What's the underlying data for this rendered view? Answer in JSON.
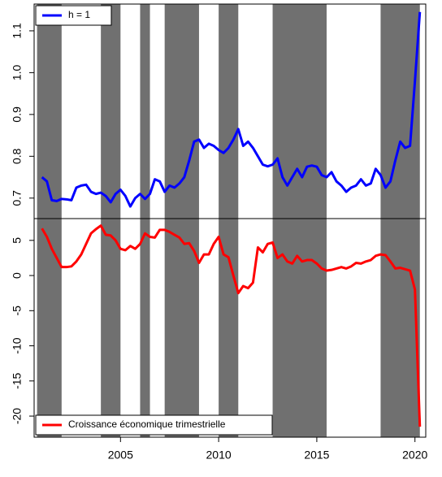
{
  "chart_data": [
    {
      "type": "line",
      "legend": "topleft",
      "x": [
        2001.0,
        2001.25,
        2001.5,
        2001.75,
        2002.0,
        2002.25,
        2002.5,
        2002.75,
        2003.0,
        2003.25,
        2003.5,
        2003.75,
        2004.0,
        2004.25,
        2004.5,
        2004.75,
        2005.0,
        2005.25,
        2005.5,
        2005.75,
        2006.0,
        2006.25,
        2006.5,
        2006.75,
        2007.0,
        2007.25,
        2007.5,
        2007.75,
        2008.0,
        2008.25,
        2008.5,
        2008.75,
        2009.0,
        2009.25,
        2009.5,
        2009.75,
        2010.0,
        2010.25,
        2010.5,
        2010.75,
        2011.0,
        2011.25,
        2011.5,
        2011.75,
        2012.0,
        2012.25,
        2012.5,
        2012.75,
        2013.0,
        2013.25,
        2013.5,
        2013.75,
        2014.0,
        2014.25,
        2014.5,
        2014.75,
        2015.0,
        2015.25,
        2015.5,
        2015.75,
        2016.0,
        2016.25,
        2016.5,
        2016.75,
        2017.0,
        2017.25,
        2017.5,
        2017.75,
        2018.0,
        2018.25,
        2018.5,
        2018.75,
        2019.0,
        2019.25,
        2019.5,
        2019.75,
        2020.0,
        2020.25
      ],
      "series": [
        {
          "name": "h = 1",
          "color": "#0000ff",
          "values": [
            0.75,
            0.74,
            0.695,
            0.693,
            0.698,
            0.697,
            0.695,
            0.725,
            0.73,
            0.732,
            0.715,
            0.71,
            0.713,
            0.705,
            0.69,
            0.71,
            0.72,
            0.705,
            0.68,
            0.7,
            0.71,
            0.698,
            0.71,
            0.745,
            0.74,
            0.715,
            0.73,
            0.725,
            0.735,
            0.75,
            0.79,
            0.835,
            0.84,
            0.82,
            0.83,
            0.825,
            0.815,
            0.808,
            0.82,
            0.84,
            0.865,
            0.825,
            0.835,
            0.82,
            0.8,
            0.78,
            0.776,
            0.78,
            0.795,
            0.75,
            0.73,
            0.75,
            0.77,
            0.75,
            0.775,
            0.778,
            0.775,
            0.755,
            0.75,
            0.762,
            0.74,
            0.73,
            0.715,
            0.725,
            0.73,
            0.745,
            0.73,
            0.735,
            0.77,
            0.755,
            0.725,
            0.74,
            0.79,
            0.835,
            0.82,
            0.825,
            0.98,
            1.145
          ]
        }
      ],
      "xlim": [
        2000.6,
        2020.55
      ],
      "ylim": [
        0.651,
        1.164
      ],
      "yticks": [
        0.7,
        0.8,
        0.9,
        {
          "value": 1,
          "label": "1.0"
        },
        1.1
      ],
      "shading": [
        [
          2000.75,
          2002
        ],
        [
          2004,
          2005
        ],
        [
          2006,
          2006.5
        ],
        [
          2007.25,
          2009
        ],
        [
          2010,
          2011
        ],
        [
          2012.75,
          2015.5
        ],
        [
          2018.25,
          2020.25
        ]
      ],
      "shading_color": "#707070"
    },
    {
      "type": "line",
      "legend": "bottomleft",
      "x": [
        2001.0,
        2001.25,
        2001.5,
        2001.75,
        2002.0,
        2002.25,
        2002.5,
        2002.75,
        2003.0,
        2003.25,
        2003.5,
        2003.75,
        2004.0,
        2004.25,
        2004.5,
        2004.75,
        2005.0,
        2005.25,
        2005.5,
        2005.75,
        2006.0,
        2006.25,
        2006.5,
        2006.75,
        2007.0,
        2007.25,
        2007.5,
        2007.75,
        2008.0,
        2008.25,
        2008.5,
        2008.75,
        2009.0,
        2009.25,
        2009.5,
        2009.75,
        2010.0,
        2010.25,
        2010.5,
        2010.75,
        2011.0,
        2011.25,
        2011.5,
        2011.75,
        2012.0,
        2012.25,
        2012.5,
        2012.75,
        2013.0,
        2013.25,
        2013.5,
        2013.75,
        2014.0,
        2014.25,
        2014.5,
        2014.75,
        2015.0,
        2015.25,
        2015.5,
        2015.75,
        2016.0,
        2016.25,
        2016.5,
        2016.75,
        2017.0,
        2017.25,
        2017.5,
        2017.75,
        2018.0,
        2018.25,
        2018.5,
        2018.75,
        2019.0,
        2019.25,
        2019.5,
        2019.75,
        2020.0,
        2020.25
      ],
      "series": [
        {
          "name": "Croissance économique trimestrielle",
          "color": "#ff0000",
          "values": [
            6.7,
            5.5,
            3.8,
            2.5,
            1.2,
            1.2,
            1.3,
            2.0,
            3.0,
            4.5,
            6.0,
            6.6,
            7.1,
            5.8,
            5.7,
            5.0,
            3.8,
            3.6,
            4.2,
            3.8,
            4.5,
            6.0,
            5.5,
            5.4,
            6.5,
            6.5,
            6.2,
            5.8,
            5.4,
            4.5,
            4.6,
            3.5,
            1.8,
            3.0,
            3.0,
            4.5,
            5.5,
            3.0,
            2.6,
            0.0,
            -2.5,
            -1.5,
            -1.8,
            -1.0,
            4.0,
            3.3,
            4.5,
            4.7,
            2.5,
            3.0,
            2.0,
            1.7,
            2.8,
            2.0,
            2.2,
            2.2,
            1.7,
            1.0,
            0.7,
            0.8,
            1.0,
            1.2,
            1.0,
            1.3,
            1.8,
            1.7,
            2.0,
            2.2,
            2.8,
            3.0,
            2.9,
            2.0,
            1.0,
            1.1,
            0.9,
            0.7,
            -2.0,
            -21.5
          ]
        }
      ],
      "xlim": [
        2000.6,
        2020.55
      ],
      "ylim": [
        -23,
        8.1
      ],
      "yticks": [
        -20,
        -15,
        -10,
        -5,
        0,
        5
      ],
      "xticks": [
        2005,
        2010,
        2015,
        2020
      ],
      "shading": [
        [
          2000.75,
          2002
        ],
        [
          2004,
          2005
        ],
        [
          2006,
          2006.5
        ],
        [
          2007.25,
          2009
        ],
        [
          2010,
          2011
        ],
        [
          2012.75,
          2015.5
        ],
        [
          2018.25,
          2020.25
        ]
      ],
      "shading_color": "#707070"
    }
  ]
}
